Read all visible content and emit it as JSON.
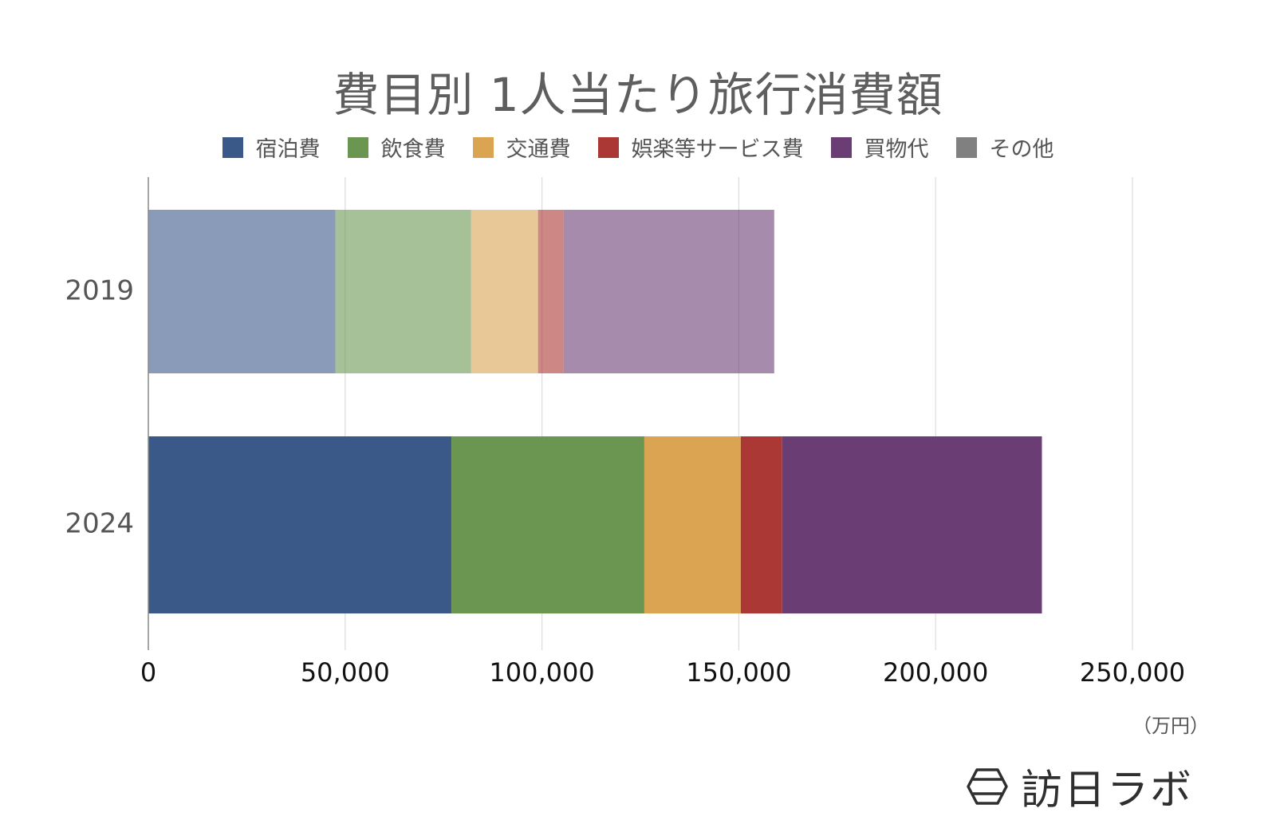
{
  "chart_data": {
    "type": "bar",
    "orientation": "horizontal",
    "stacked": true,
    "title": "費目別 1人当たり旅行消費額",
    "categories": [
      "2019",
      "2024"
    ],
    "series": [
      {
        "name": "宿泊費",
        "values": [
          47500,
          77000
        ],
        "color": "#3a5888"
      },
      {
        "name": "飲食費",
        "values": [
          34500,
          49000
        ],
        "color": "#6b9652"
      },
      {
        "name": "交通費",
        "values": [
          17000,
          24500
        ],
        "color": "#dba452"
      },
      {
        "name": "娯楽等サービス費",
        "values": [
          6500,
          10500
        ],
        "color": "#ab3834"
      },
      {
        "name": "買物代",
        "values": [
          53500,
          66000
        ],
        "color": "#6a3d74"
      },
      {
        "name": "その他",
        "values": [
          0,
          0
        ],
        "color": "#808080"
      }
    ],
    "xlim": [
      0,
      250000
    ],
    "xticks": [
      0,
      50000,
      100000,
      150000,
      200000,
      250000
    ],
    "xtick_labels": [
      "0",
      "50,000",
      "100,000",
      "150,000",
      "200,000",
      "250,000"
    ],
    "xunit": "（万円）",
    "grid": true,
    "legend_position": "top",
    "faded_categories": [
      "2019"
    ]
  },
  "logo": {
    "text": "訪日ラボ"
  }
}
